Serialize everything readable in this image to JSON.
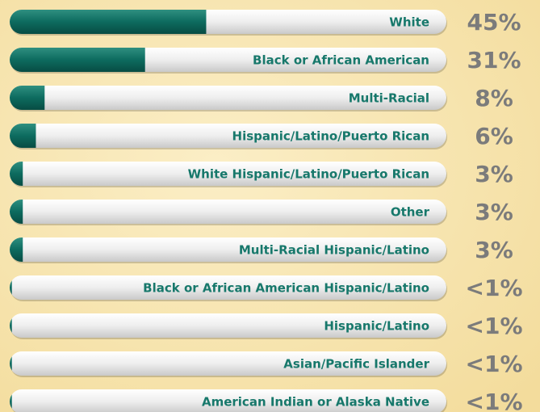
{
  "chart_data": {
    "type": "bar",
    "orientation": "horizontal",
    "categories": [
      "White",
      "Black or African American",
      "Multi-Racial",
      "Hispanic/Latino/Puerto Rican",
      "White Hispanic/Latino/Puerto Rican",
      "Other",
      "Multi-Racial Hispanic/Latino",
      "Black or African American Hispanic/Latino",
      "Hispanic/Latino",
      "Asian/Pacific Islander",
      "American Indian or Alaska Native"
    ],
    "values": [
      45,
      31,
      8,
      6,
      3,
      3,
      3,
      0.5,
      0.5,
      0.5,
      0.5
    ],
    "value_labels": [
      "45%",
      "31%",
      "8%",
      "6%",
      "3%",
      "3%",
      "3%",
      "<1%",
      "<1%",
      "<1%",
      "<1%"
    ],
    "color": "#0d6b5f",
    "xlim": [
      0,
      100
    ]
  }
}
